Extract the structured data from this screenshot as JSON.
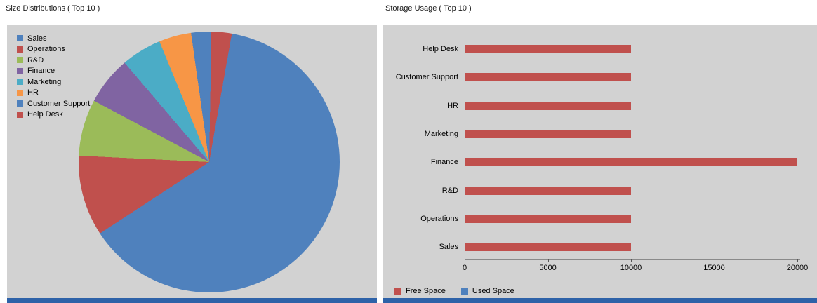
{
  "chart_data": [
    {
      "type": "pie",
      "title": "Size Distributions ( Top 10 )",
      "legend_position": "top-left",
      "rotation_deg": 10,
      "values_note": "percentages estimated from slice angles; no numeric labels shown",
      "slices": [
        {
          "label": "Sales",
          "value": 63,
          "color": "#4f81bd"
        },
        {
          "label": "Operations",
          "value": 10,
          "color": "#c0504d"
        },
        {
          "label": "R&D",
          "value": 7,
          "color": "#9bbb59"
        },
        {
          "label": "Finance",
          "value": 6,
          "color": "#8064a2"
        },
        {
          "label": "Marketing",
          "value": 5,
          "color": "#4bacc6"
        },
        {
          "label": "HR",
          "value": 4,
          "color": "#f79646"
        },
        {
          "label": "Customer Support",
          "value": 2.5,
          "color": "#4f81bd"
        },
        {
          "label": "Help Desk",
          "value": 2.5,
          "color": "#c0504d"
        }
      ]
    },
    {
      "type": "bar",
      "orientation": "horizontal",
      "title": "Storage Usage ( Top 10 )",
      "categories_top_to_bottom": [
        "Help Desk",
        "Customer Support",
        "HR",
        "Marketing",
        "Finance",
        "R&D",
        "Operations",
        "Sales"
      ],
      "series": [
        {
          "name": "Free Space",
          "color": "#c0504d",
          "values": [
            10000,
            10000,
            10000,
            10000,
            20000,
            10000,
            10000,
            10000
          ]
        }
      ],
      "legend": [
        {
          "label": "Free Space",
          "color": "#c0504d"
        },
        {
          "label": "Used Space",
          "color": "#4f81bd"
        }
      ],
      "legend_position": "bottom-left",
      "xlim": [
        0,
        20000
      ],
      "xticks": [
        0,
        5000,
        10000,
        15000,
        20000
      ],
      "grid": false
    }
  ],
  "colors": {
    "panel_background": "#d2d2d2",
    "scrollbar_blue": "#2e62a8",
    "bar_red": "#c0504d",
    "legend_blue": "#4f81bd"
  }
}
